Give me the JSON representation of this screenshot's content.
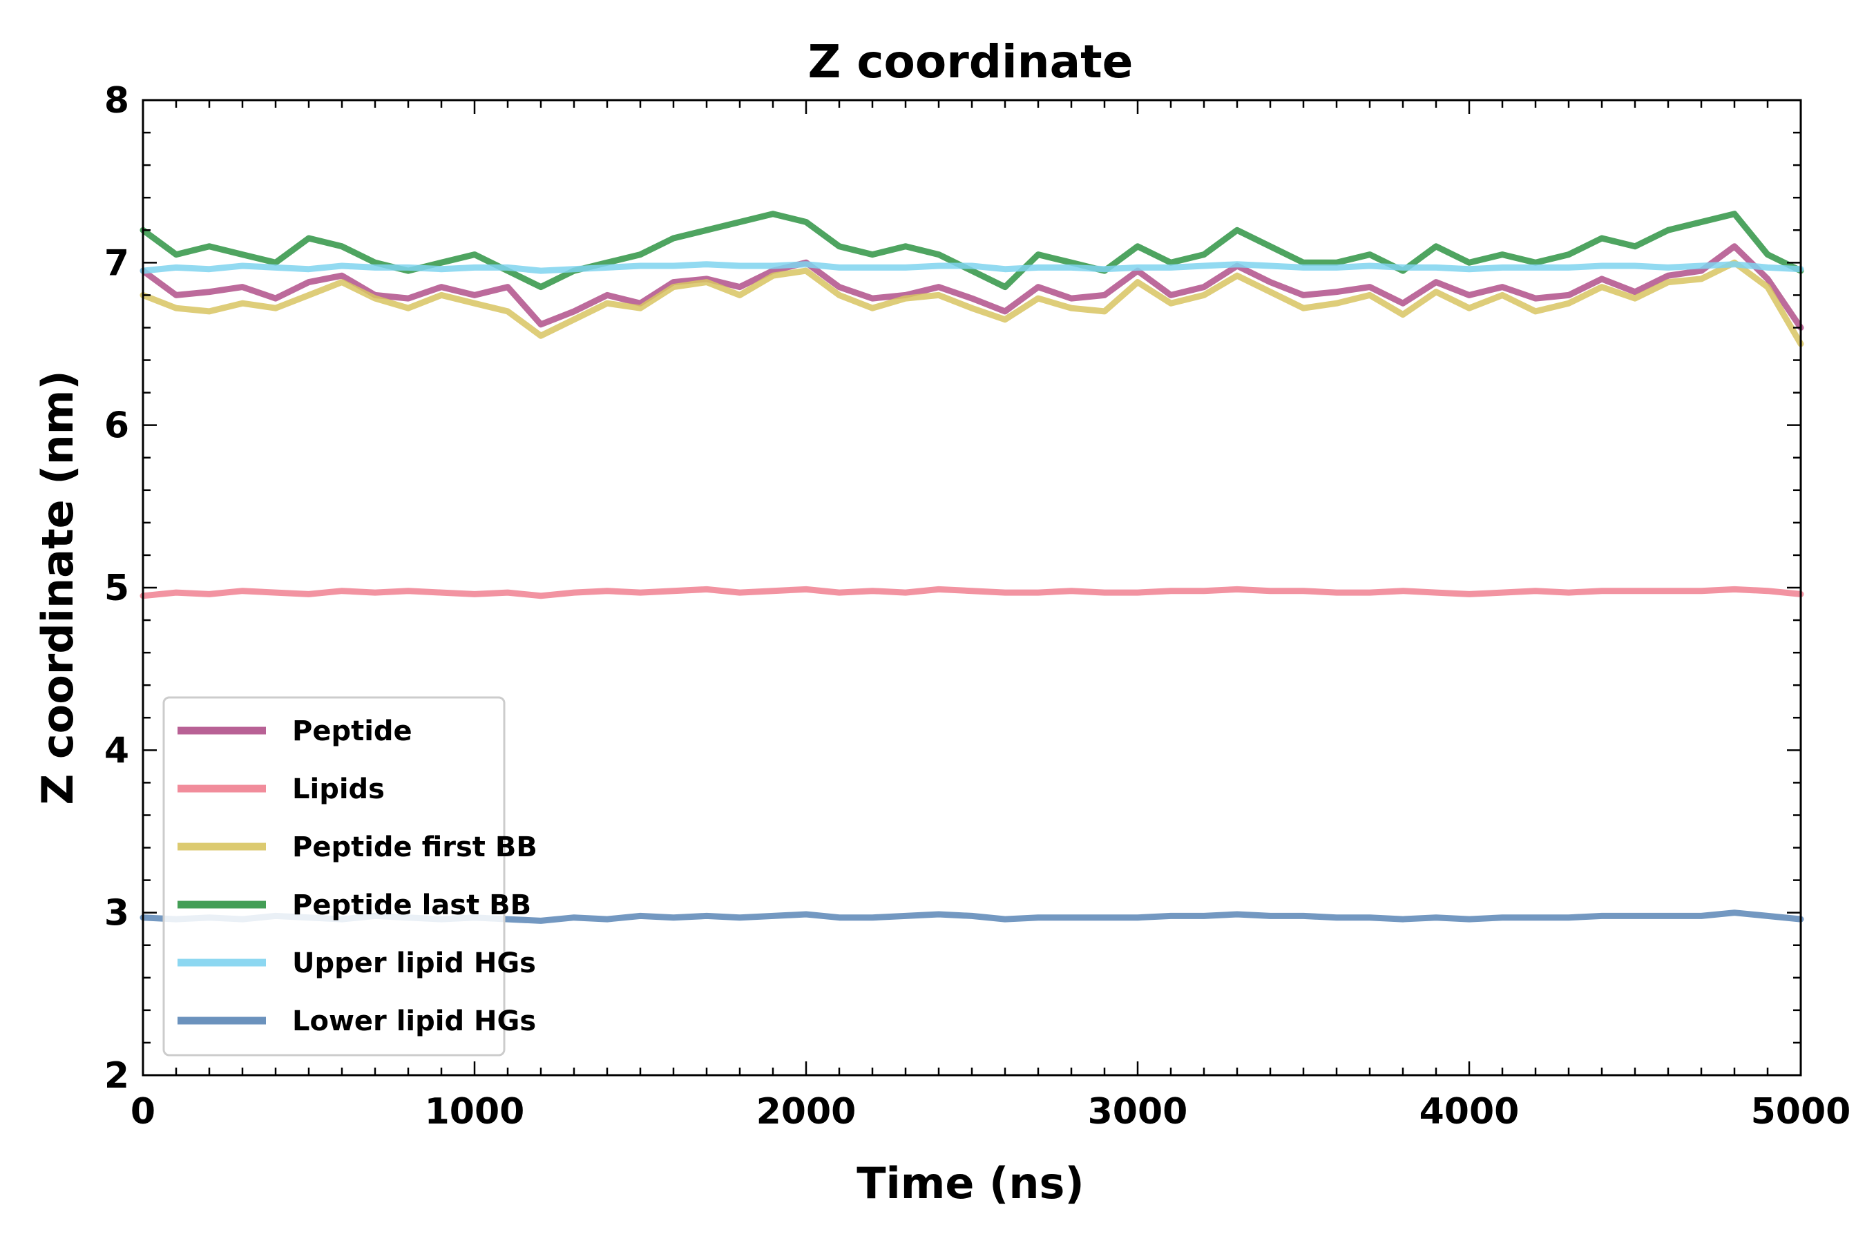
{
  "chart_data": {
    "type": "line",
    "title": "Z coordinate",
    "xlabel": "Time (ns)",
    "ylabel": "Z coordinate (nm)",
    "xlim": [
      0,
      5000
    ],
    "ylim": [
      2,
      8
    ],
    "x_ticks": [
      0,
      1000,
      2000,
      3000,
      4000,
      5000
    ],
    "y_ticks": [
      2,
      3,
      4,
      5,
      6,
      7,
      8
    ],
    "grid": false,
    "legend_position": "lower-left",
    "x": [
      0,
      100,
      200,
      300,
      400,
      500,
      600,
      700,
      800,
      900,
      1000,
      1100,
      1200,
      1300,
      1400,
      1500,
      1600,
      1700,
      1800,
      1900,
      2000,
      2100,
      2200,
      2300,
      2400,
      2500,
      2600,
      2700,
      2800,
      2900,
      3000,
      3100,
      3200,
      3300,
      3400,
      3500,
      3600,
      3700,
      3800,
      3900,
      4000,
      4100,
      4200,
      4300,
      4400,
      4500,
      4600,
      4700,
      4800,
      4900,
      5000
    ],
    "series": [
      {
        "name": "Peptide",
        "color": "#b0508a",
        "values": [
          6.95,
          6.8,
          6.82,
          6.85,
          6.78,
          6.88,
          6.92,
          6.8,
          6.78,
          6.85,
          6.8,
          6.85,
          6.62,
          6.7,
          6.8,
          6.75,
          6.88,
          6.9,
          6.85,
          6.95,
          7.0,
          6.85,
          6.78,
          6.8,
          6.85,
          6.78,
          6.7,
          6.85,
          6.78,
          6.8,
          6.95,
          6.8,
          6.85,
          6.98,
          6.88,
          6.8,
          6.82,
          6.85,
          6.75,
          6.88,
          6.8,
          6.85,
          6.78,
          6.8,
          6.9,
          6.82,
          6.92,
          6.95,
          7.1,
          6.9,
          6.6
        ]
      },
      {
        "name": "Lipids",
        "color": "#f08090",
        "values": [
          4.95,
          4.97,
          4.96,
          4.98,
          4.97,
          4.96,
          4.98,
          4.97,
          4.98,
          4.97,
          4.96,
          4.97,
          4.95,
          4.97,
          4.98,
          4.97,
          4.98,
          4.99,
          4.97,
          4.98,
          4.99,
          4.97,
          4.98,
          4.97,
          4.99,
          4.98,
          4.97,
          4.97,
          4.98,
          4.97,
          4.97,
          4.98,
          4.98,
          4.99,
          4.98,
          4.98,
          4.97,
          4.97,
          4.98,
          4.97,
          4.96,
          4.97,
          4.98,
          4.97,
          4.98,
          4.98,
          4.98,
          4.98,
          4.99,
          4.98,
          4.96
        ]
      },
      {
        "name": "Peptide first BB",
        "color": "#d8c461",
        "values": [
          6.8,
          6.72,
          6.7,
          6.75,
          6.72,
          6.8,
          6.88,
          6.78,
          6.72,
          6.8,
          6.75,
          6.7,
          6.55,
          6.65,
          6.75,
          6.72,
          6.85,
          6.88,
          6.8,
          6.92,
          6.95,
          6.8,
          6.72,
          6.78,
          6.8,
          6.72,
          6.65,
          6.78,
          6.72,
          6.7,
          6.88,
          6.75,
          6.8,
          6.92,
          6.82,
          6.72,
          6.75,
          6.8,
          6.68,
          6.82,
          6.72,
          6.8,
          6.7,
          6.75,
          6.85,
          6.78,
          6.88,
          6.9,
          7.0,
          6.85,
          6.5
        ]
      },
      {
        "name": "Peptide last BB",
        "color": "#2f9444",
        "values": [
          7.2,
          7.05,
          7.1,
          7.05,
          7.0,
          7.15,
          7.1,
          7.0,
          6.95,
          7.0,
          7.05,
          6.95,
          6.85,
          6.95,
          7.0,
          7.05,
          7.15,
          7.2,
          7.25,
          7.3,
          7.25,
          7.1,
          7.05,
          7.1,
          7.05,
          6.95,
          6.85,
          7.05,
          7.0,
          6.95,
          7.1,
          7.0,
          7.05,
          7.2,
          7.1,
          7.0,
          7.0,
          7.05,
          6.95,
          7.1,
          7.0,
          7.05,
          7.0,
          7.05,
          7.15,
          7.1,
          7.2,
          7.25,
          7.3,
          7.05,
          6.95
        ]
      },
      {
        "name": "Upper lipid HGs",
        "color": "#7fd3ef",
        "values": [
          6.95,
          6.97,
          6.96,
          6.98,
          6.97,
          6.96,
          6.98,
          6.97,
          6.97,
          6.96,
          6.97,
          6.97,
          6.95,
          6.96,
          6.97,
          6.98,
          6.98,
          6.99,
          6.98,
          6.98,
          6.99,
          6.97,
          6.97,
          6.97,
          6.98,
          6.98,
          6.96,
          6.97,
          6.97,
          6.96,
          6.97,
          6.97,
          6.98,
          6.99,
          6.98,
          6.97,
          6.97,
          6.98,
          6.97,
          6.97,
          6.96,
          6.97,
          6.97,
          6.97,
          6.98,
          6.98,
          6.97,
          6.98,
          6.99,
          6.97,
          6.96
        ]
      },
      {
        "name": "Lower lipid HGs",
        "color": "#5b86b6",
        "values": [
          2.97,
          2.96,
          2.97,
          2.96,
          2.98,
          2.97,
          2.96,
          2.98,
          2.97,
          2.96,
          2.97,
          2.96,
          2.95,
          2.97,
          2.96,
          2.98,
          2.97,
          2.98,
          2.97,
          2.98,
          2.99,
          2.97,
          2.97,
          2.98,
          2.99,
          2.98,
          2.96,
          2.97,
          2.97,
          2.97,
          2.97,
          2.98,
          2.98,
          2.99,
          2.98,
          2.98,
          2.97,
          2.97,
          2.96,
          2.97,
          2.96,
          2.97,
          2.97,
          2.97,
          2.98,
          2.98,
          2.98,
          2.98,
          3.0,
          2.98,
          2.96
        ]
      }
    ]
  }
}
